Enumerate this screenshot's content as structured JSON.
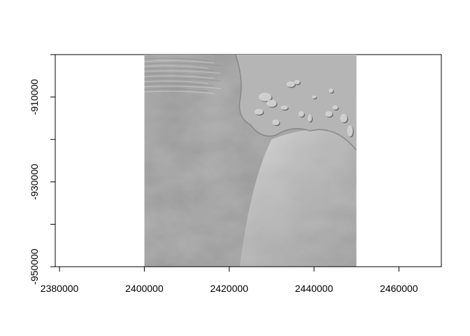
{
  "chart_data": {
    "type": "raster",
    "title": "",
    "xlabel": "",
    "ylabel": "",
    "xlim": [
      2379000,
      2470000
    ],
    "ylim": [
      -950000,
      -900000
    ],
    "raster_extent": {
      "x": [
        2400000,
        2450000
      ],
      "y": [
        -950000,
        -900000
      ]
    },
    "x_ticks": [
      2380000,
      2400000,
      2420000,
      2440000,
      2460000
    ],
    "x_tick_labels": [
      "2380000",
      "2400000",
      "2420000",
      "2440000",
      "2460000"
    ],
    "y_ticks": [
      -950000,
      -940000,
      -930000,
      -920000,
      -910000,
      -900000
    ],
    "y_tick_labels": [
      "-950000",
      "-930000",
      "-910000"
    ],
    "y_labeled_ticks": [
      -950000,
      -930000,
      -910000
    ],
    "fill": "grayscale hillshade relief"
  },
  "colors": {
    "background": "#ffffff",
    "axis": "#000000",
    "raster_base": "#b5b5b5",
    "raster_dark": "#7d7d7d",
    "raster_light": "#e8e8e8"
  }
}
